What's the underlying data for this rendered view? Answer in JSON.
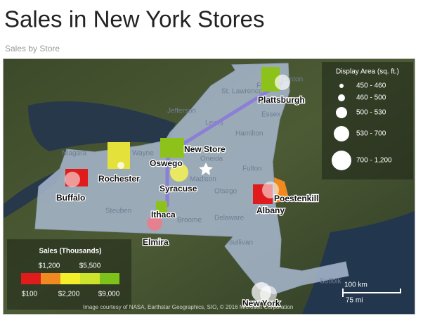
{
  "header": {
    "title": "Sales in New York Stores",
    "subtitle": "Sales by Store"
  },
  "map": {
    "regions": [
      "St. Lawrence",
      "Franklin",
      "Clinton",
      "Jefferson",
      "Essex",
      "Lewis",
      "Hamilton",
      "Niagara",
      "Wayne",
      "Oneida",
      "Madison",
      "Fulton",
      "Otsego",
      "Steuben",
      "Broome",
      "Delaware",
      "Sullivan",
      "Suffolk"
    ],
    "stores": [
      "Plattsburgh",
      "New Store",
      "Oswego",
      "Rochester",
      "Syracuse",
      "Buffalo",
      "Poestenkill",
      "Albany",
      "Ithaca",
      "Elmira",
      "New York"
    ]
  },
  "size_legend": {
    "title": "Display Area (sq. ft.)",
    "items": [
      "450 - 460",
      "460 - 500",
      "500 - 530",
      "530 - 700",
      "700 - 1,200"
    ]
  },
  "color_legend": {
    "title": "Sales (Thousands)",
    "top_labels": [
      "$1,200",
      "$5,500"
    ],
    "bottom_labels": [
      "$100",
      "$2,200",
      "$9,000"
    ]
  },
  "scale": {
    "km": "100 km",
    "mi": "75 mi"
  },
  "attribution": "Image courtesy of NASA, Earthstar Geographics, SIO, © 2016 Microsoft Corporation"
}
